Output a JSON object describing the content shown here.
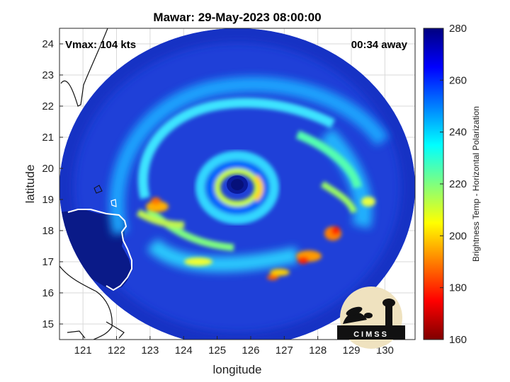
{
  "title": "Mawar: 29-May-2023 08:00:00",
  "annotations": {
    "vmax": "Vmax: 104 kts",
    "time_away": "00:34 away"
  },
  "logo": {
    "text": "CIMSS"
  },
  "chart_data": {
    "type": "heatmap",
    "title": "Mawar: 29-May-2023 08:00:00",
    "xlabel": "longitude",
    "ylabel": "latitude",
    "xlim": [
      120.3,
      130.9
    ],
    "ylim": [
      14.5,
      24.5
    ],
    "xticks": [
      121,
      122,
      123,
      124,
      125,
      126,
      127,
      128,
      129,
      130
    ],
    "yticks": [
      15,
      16,
      17,
      18,
      19,
      20,
      21,
      22,
      23,
      24
    ],
    "grid": true,
    "storm_center": {
      "lon": 125.7,
      "lat": 19.45
    },
    "colorbar": {
      "label": "Brightness Temp - Horizontal Polarization",
      "range": [
        160,
        280
      ],
      "ticks": [
        160,
        180,
        200,
        220,
        240,
        260,
        280
      ],
      "colormap": "jet",
      "colors": [
        "#7f0000",
        "#ff0000",
        "#ff7f00",
        "#ffff00",
        "#7fff7f",
        "#00ffff",
        "#007fff",
        "#0000ff",
        "#00007f"
      ]
    },
    "series_notes": {
      "eye_temp": 262,
      "eyewall_min_temp": 205,
      "rainband_min_temp": 185,
      "background_temp": 265,
      "land_temp": 280
    }
  },
  "colors": {
    "ocean_high": "#1f3fd8",
    "land": "#0a1f8a",
    "coast": "#ffffff",
    "axis": "#262626"
  }
}
